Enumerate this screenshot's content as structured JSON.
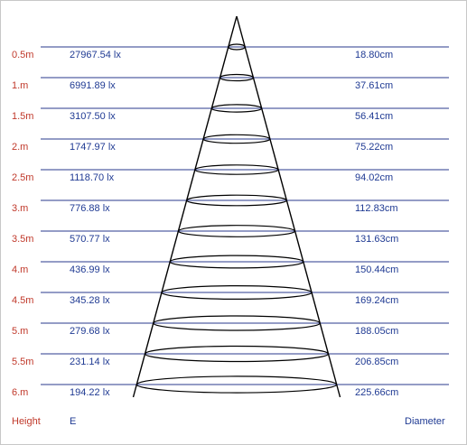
{
  "footer": {
    "height_label": "Height",
    "illuminance_label": "E",
    "diameter_label": "Diameter"
  },
  "colors": {
    "height_text": "#c0392b",
    "value_text": "#1f3a93",
    "row_line": "#2a3a8c",
    "cone": "#000000"
  },
  "rows": [
    {
      "height": "0.5m",
      "lux": "27967.54 lx",
      "diameter": "18.80cm"
    },
    {
      "height": "1.m",
      "lux": "6991.89 lx",
      "diameter": "37.61cm"
    },
    {
      "height": "1.5m",
      "lux": "3107.50 lx",
      "diameter": "56.41cm"
    },
    {
      "height": "2.m",
      "lux": "1747.97 lx",
      "diameter": "75.22cm"
    },
    {
      "height": "2.5m",
      "lux": "1118.70 lx",
      "diameter": "94.02cm"
    },
    {
      "height": "3.m",
      "lux": "776.88 lx",
      "diameter": "112.83cm"
    },
    {
      "height": "3.5m",
      "lux": "570.77 lx",
      "diameter": "131.63cm"
    },
    {
      "height": "4.m",
      "lux": "436.99 lx",
      "diameter": "150.44cm"
    },
    {
      "height": "4.5m",
      "lux": "345.28 lx",
      "diameter": "169.24cm"
    },
    {
      "height": "5.m",
      "lux": "279.68 lx",
      "diameter": "188.05cm"
    },
    {
      "height": "5.5m",
      "lux": "231.14 lx",
      "diameter": "206.85cm"
    },
    {
      "height": "6.m",
      "lux": "194.22 lx",
      "diameter": "225.66cm"
    }
  ]
}
